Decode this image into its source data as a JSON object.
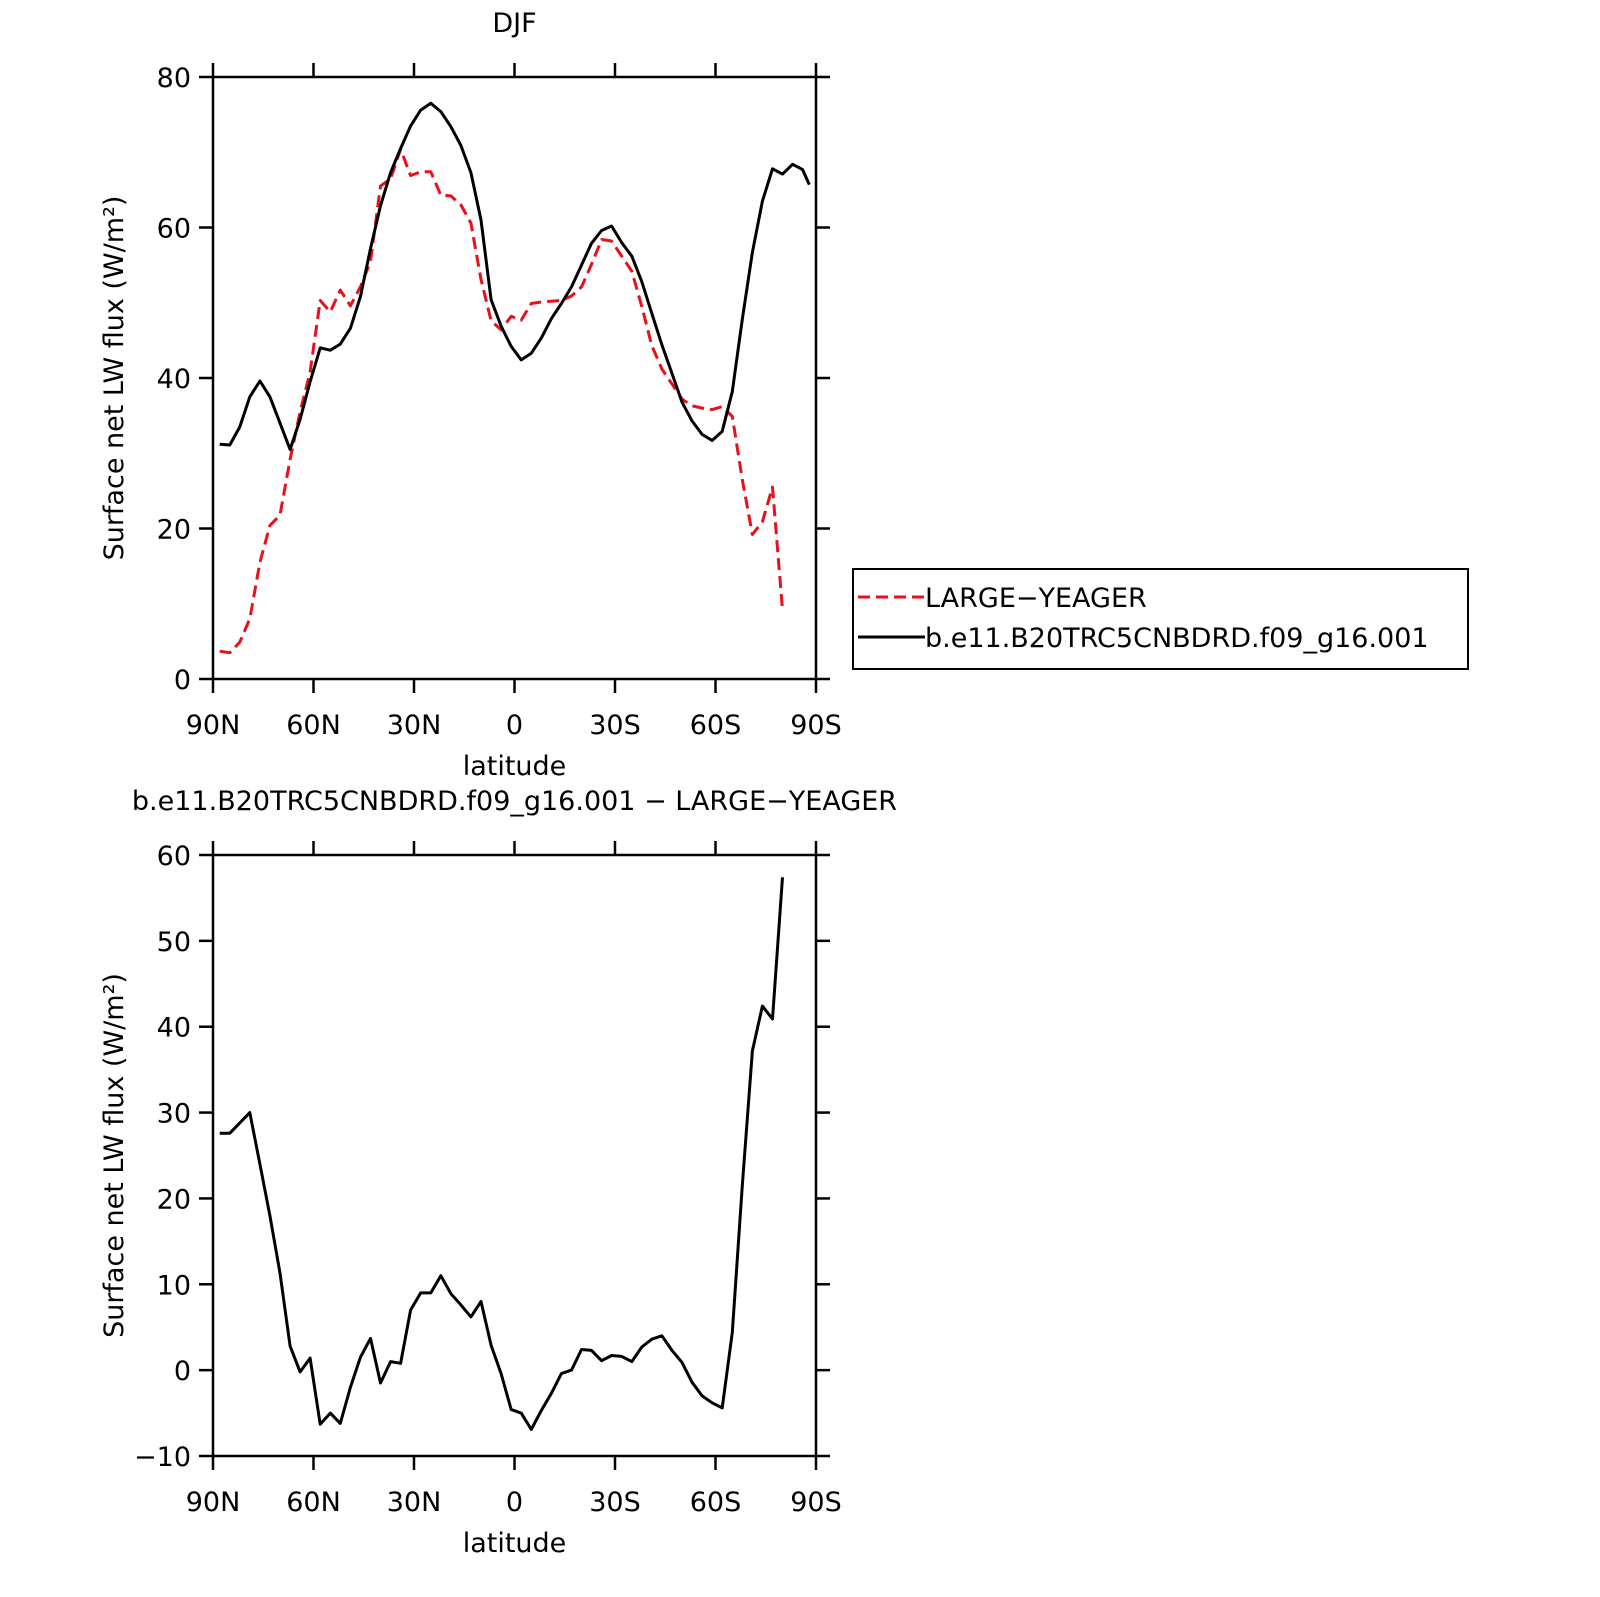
{
  "chart_data": [
    {
      "type": "line",
      "title": "DJF",
      "xlabel": "latitude",
      "ylabel": "Surface net LW flux (W/m²)",
      "x": [
        88,
        85,
        82,
        79,
        76,
        73,
        70,
        67,
        64,
        61,
        58,
        55,
        52,
        49,
        46,
        43,
        40,
        37,
        34,
        31,
        28,
        25,
        22,
        19,
        16,
        13,
        10,
        7,
        4,
        1,
        -2,
        -5,
        -8,
        -11,
        -14,
        -17,
        -20,
        -23,
        -26,
        -29,
        -32,
        -35,
        -38,
        -41,
        -44,
        -47,
        -50,
        -53,
        -56,
        -59,
        -62,
        -65,
        -68,
        -71,
        -74,
        -77,
        -80,
        -83,
        -86,
        -88
      ],
      "xlim": [
        90,
        -90
      ],
      "xticks": [
        {
          "value": 90,
          "label": "90N"
        },
        {
          "value": 60,
          "label": "60N"
        },
        {
          "value": 30,
          "label": "30N"
        },
        0,
        {
          "value": -30,
          "label": "30S"
        },
        {
          "value": -60,
          "label": "60S"
        },
        {
          "value": -90,
          "label": "90S"
        }
      ],
      "ylim": [
        0,
        80
      ],
      "yticks": [
        0,
        20,
        40,
        60,
        80
      ],
      "legend": "right",
      "series": [
        {
          "name": "LARGE−YEAGER",
          "color": "#e8111b",
          "style": "dashed",
          "values": [
            3.7,
            3.5,
            4.9,
            8.0,
            15.5,
            20.4,
            21.8,
            29.2,
            35.5,
            40.8,
            50.3,
            48.8,
            51.7,
            49.6,
            52.1,
            55.5,
            65.5,
            66.5,
            70.4,
            66.9,
            67.4,
            67.4,
            64.3,
            64.2,
            63.0,
            60.6,
            53.1,
            47.6,
            46.4,
            48.2,
            47.7,
            49.9,
            50.1,
            50.2,
            50.3,
            50.9,
            52.1,
            55.1,
            58.4,
            58.2,
            56.2,
            54.2,
            49.5,
            44.3,
            41.2,
            39.2,
            37.2,
            36.3,
            36.0,
            35.8,
            36.2,
            34.9,
            26.5,
            19.2,
            20.9,
            25.5,
            9.2,
            null,
            null,
            null
          ]
        },
        {
          "name": "b.e11.B20TRC5CNBDRD.f09_g16.001",
          "color": "#000000",
          "style": "solid",
          "values": [
            31.2,
            31.1,
            33.5,
            37.5,
            39.6,
            37.5,
            34.0,
            30.5,
            34.5,
            39.5,
            44.0,
            43.7,
            44.5,
            46.6,
            50.8,
            57.2,
            62.9,
            67.3,
            70.5,
            73.5,
            75.6,
            76.5,
            75.4,
            73.4,
            70.9,
            67.3,
            61.0,
            50.4,
            46.9,
            44.2,
            42.4,
            43.3,
            45.3,
            47.9,
            49.9,
            52.1,
            55.0,
            57.9,
            59.6,
            60.2,
            58.0,
            56.2,
            52.8,
            48.6,
            44.4,
            40.6,
            36.8,
            34.3,
            32.5,
            31.7,
            32.9,
            38.2,
            47.8,
            56.7,
            63.5,
            67.8,
            67.1,
            68.4,
            67.7,
            65.7
          ]
        }
      ]
    },
    {
      "type": "line",
      "title": "b.e11.B20TRC5CNBDRD.f09_g16.001 − LARGE−YEAGER",
      "xlabel": "latitude",
      "ylabel": "Surface net LW flux (W/m²)",
      "x": [
        88,
        85,
        82,
        79,
        76,
        73,
        70,
        67,
        64,
        61,
        58,
        55,
        52,
        49,
        46,
        43,
        40,
        37,
        34,
        31,
        28,
        25,
        22,
        19,
        16,
        13,
        10,
        7,
        4,
        1,
        -2,
        -5,
        -8,
        -11,
        -14,
        -17,
        -20,
        -23,
        -26,
        -29,
        -32,
        -35,
        -38,
        -41,
        -44,
        -47,
        -50,
        -53,
        -56,
        -59,
        -62,
        -65,
        -68,
        -71,
        -74,
        -77,
        -80,
        -83,
        -86,
        -88
      ],
      "xlim": [
        90,
        -90
      ],
      "xticks": [
        {
          "value": 90,
          "label": "90N"
        },
        {
          "value": 60,
          "label": "60N"
        },
        {
          "value": 30,
          "label": "30N"
        },
        0,
        {
          "value": -30,
          "label": "30S"
        },
        {
          "value": -60,
          "label": "60S"
        },
        {
          "value": -90,
          "label": "90S"
        }
      ],
      "ylim": [
        -10,
        60
      ],
      "yticks": [
        {
          "value": -10,
          "label": "−10"
        },
        0,
        10,
        20,
        30,
        40,
        50,
        60
      ],
      "series": [
        {
          "color": "#000000",
          "style": "solid",
          "values": [
            27.6,
            27.6,
            28.8,
            30.0,
            24.0,
            18.0,
            11.3,
            2.8,
            -0.2,
            1.4,
            -6.3,
            -5.0,
            -6.2,
            -2.0,
            1.5,
            3.7,
            -1.5,
            1.0,
            0.8,
            7.0,
            9.0,
            9.0,
            11.0,
            8.9,
            7.6,
            6.2,
            8.0,
            2.9,
            -0.4,
            -4.6,
            -5.0,
            -6.9,
            -4.7,
            -2.7,
            -0.4,
            0.0,
            2.4,
            2.3,
            1.1,
            1.7,
            1.6,
            1.0,
            2.7,
            3.6,
            4.0,
            2.3,
            0.9,
            -1.4,
            -3.0,
            -3.8,
            -4.4,
            4.4,
            21.5,
            37.2,
            42.4,
            40.9,
            57.4,
            null,
            null,
            null
          ]
        }
      ]
    }
  ]
}
